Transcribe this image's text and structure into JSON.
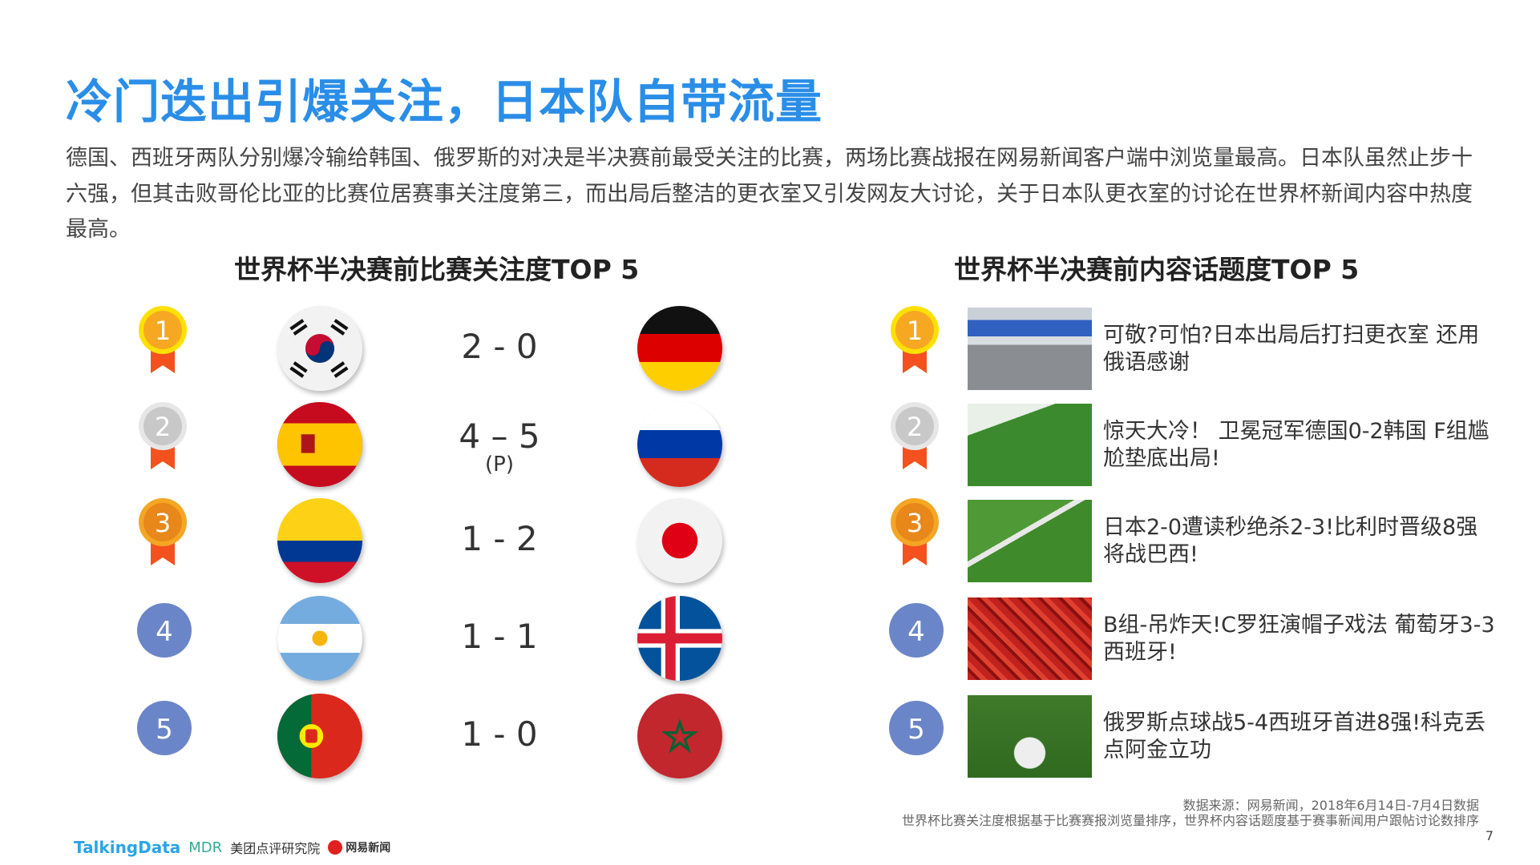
{
  "title": "冷门迭出引爆关注，日本队自带流量",
  "paragraph": "德国、西班牙两队分别爆冷输给韩国、俄罗斯的对决是半决赛前最受关注的比赛，两场比赛战报在网易新闻客户端中浏览量最高。日本队虽然止步十六强，但其击败哥伦比亚的比赛位居赛事关注度第三，而出局后整洁的更衣室又引发网友大讨论，关于日本队更衣室的讨论在世界杯新闻内容中热度最高。",
  "left": {
    "heading": "世界杯半决赛前比赛关注度TOP 5",
    "matches": [
      {
        "rank": "1",
        "team1": "korea",
        "score": "2 - 0",
        "team2": "germany",
        "note": ""
      },
      {
        "rank": "2",
        "team1": "spain",
        "score": "4 – 5",
        "team2": "russia",
        "note": "(P)"
      },
      {
        "rank": "3",
        "team1": "colombia",
        "score": "1 - 2",
        "team2": "japan",
        "note": ""
      },
      {
        "rank": "4",
        "team1": "argentina",
        "score": "1 - 1",
        "team2": "iceland",
        "note": ""
      },
      {
        "rank": "5",
        "team1": "portugal",
        "score": "1 - 0",
        "team2": "morocco",
        "note": ""
      }
    ]
  },
  "right": {
    "heading": "世界杯半决赛前内容话题度TOP 5",
    "items": [
      {
        "rank": "1",
        "text": "可敬?可怕?日本出局后打扫更衣室 还用俄语感谢",
        "image": "locker-room"
      },
      {
        "rank": "2",
        "text": "惊天大冷！ 卫冕冠军德国0-2韩国 F组尴尬垫底出局!",
        "image": "goal-action"
      },
      {
        "rank": "3",
        "text": "日本2-0遭读秒绝杀2-3!比利时晋级8强将战巴西!",
        "image": "goalkeeper-down"
      },
      {
        "rank": "4",
        "text": "B组-吊炸天!C罗狂演帽子戏法 葡萄牙3-3西班牙!",
        "image": "fans-crowd"
      },
      {
        "rank": "5",
        "text": "俄罗斯点球战5-4西班牙首进8强!科克丢点阿金立功",
        "image": "celebration"
      }
    ]
  },
  "source_line1": "数据来源：网易新闻，2018年6月14日-7月4日数据",
  "source_line2": "世界杯比赛关注度根据基于比赛赛报浏览量排序，世界杯内容话题度基于赛事新闻用户跟帖讨论数排序",
  "page_number": "7",
  "logos": {
    "talkingdata": "TalkingData",
    "mdr": "MDR",
    "meituan": "美团点评研究院",
    "netease": "网易新闻"
  },
  "colors": {
    "title": "#2a8ee8",
    "gold": "#f7a823",
    "silver": "#c8c8c8",
    "bronze": "#e8871a",
    "blue_badge": "#6b86c8",
    "ribbon": "#f4511e"
  }
}
